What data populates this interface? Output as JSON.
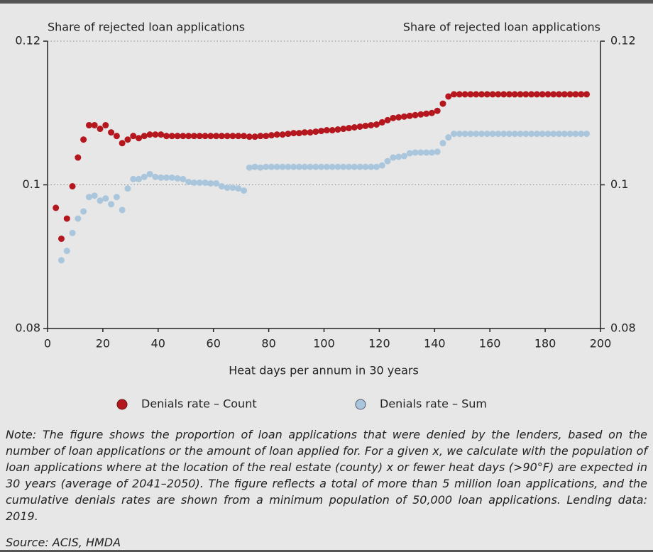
{
  "chart_data": {
    "type": "scatter",
    "y_label": "Share of rejected loan applications",
    "y2_label": "Share of rejected loan applications",
    "x_label": "Heat days per annum in 30 years",
    "x": [
      3,
      5,
      7,
      9,
      11,
      13,
      15,
      17,
      19,
      21,
      23,
      25,
      27,
      29,
      31,
      33,
      35,
      37,
      39,
      41,
      43,
      45,
      47,
      49,
      51,
      53,
      55,
      57,
      59,
      61,
      63,
      65,
      67,
      69,
      71,
      73,
      75,
      77,
      79,
      81,
      83,
      85,
      87,
      89,
      91,
      93,
      95,
      97,
      99,
      101,
      103,
      105,
      107,
      109,
      111,
      113,
      115,
      117,
      119,
      121,
      123,
      125,
      127,
      129,
      131,
      133,
      135,
      137,
      139,
      141,
      143,
      145,
      147,
      149,
      151,
      153,
      155,
      157,
      159,
      161,
      163,
      165,
      167,
      169,
      171,
      173,
      175,
      177,
      179,
      181,
      183,
      185,
      187,
      189,
      191,
      193,
      195
    ],
    "series": [
      {
        "name": "Denials rate – Count",
        "color": "#b5171e",
        "values": [
          0.0968,
          0.0925,
          0.0953,
          0.0998,
          0.1038,
          0.1063,
          0.1083,
          0.1083,
          0.1078,
          0.1083,
          0.1073,
          0.1068,
          0.1058,
          0.1063,
          0.1068,
          0.1065,
          0.1068,
          0.107,
          0.107,
          0.107,
          0.1068,
          0.1068,
          0.1068,
          0.1068,
          0.1068,
          0.1068,
          0.1068,
          0.1068,
          0.1068,
          0.1068,
          0.1068,
          0.1068,
          0.1068,
          0.1068,
          0.1068,
          0.1067,
          0.1067,
          0.1068,
          0.1068,
          0.1069,
          0.107,
          0.107,
          0.1071,
          0.1072,
          0.1072,
          0.1073,
          0.1073,
          0.1074,
          0.1075,
          0.1076,
          0.1076,
          0.1077,
          0.1078,
          0.1079,
          0.108,
          0.1081,
          0.1082,
          0.1083,
          0.1084,
          0.1087,
          0.109,
          0.1093,
          0.1094,
          0.1095,
          0.1096,
          0.1097,
          0.1098,
          0.1099,
          0.11,
          0.1103,
          0.1113,
          0.1123,
          0.1126,
          0.1126,
          0.1126,
          0.1126,
          0.1126,
          0.1126,
          0.1126,
          0.1126,
          0.1126,
          0.1126,
          0.1126,
          0.1126,
          0.1126,
          0.1126,
          0.1126,
          0.1126,
          0.1126,
          0.1126,
          0.1126,
          0.1126,
          0.1126,
          0.1126,
          0.1126,
          0.1126,
          0.1126
        ]
      },
      {
        "name": "Denials rate – Sum",
        "color": "#a9c6dd",
        "values": [
          null,
          0.0895,
          0.0908,
          0.0933,
          0.0953,
          0.0963,
          0.0983,
          0.0985,
          0.0978,
          0.0981,
          0.0973,
          0.0983,
          0.0965,
          0.0995,
          0.1008,
          0.1008,
          0.1011,
          0.1015,
          0.1011,
          0.101,
          0.101,
          0.101,
          0.1009,
          0.1008,
          0.1004,
          0.1003,
          0.1003,
          0.1003,
          0.1002,
          0.1002,
          0.0998,
          0.0996,
          0.0996,
          0.0995,
          0.0992,
          0.1024,
          0.1025,
          0.1024,
          0.1025,
          0.1025,
          0.1025,
          0.1025,
          0.1025,
          0.1025,
          0.1025,
          0.1025,
          0.1025,
          0.1025,
          0.1025,
          0.1025,
          0.1025,
          0.1025,
          0.1025,
          0.1025,
          0.1025,
          0.1025,
          0.1025,
          0.1025,
          0.1025,
          0.1027,
          0.1033,
          0.1038,
          0.1039,
          0.104,
          0.1044,
          0.1045,
          0.1045,
          0.1045,
          0.1045,
          0.1046,
          0.1058,
          0.1066,
          0.1071,
          0.1071,
          0.1071,
          0.1071,
          0.1071,
          0.1071,
          0.1071,
          0.1071,
          0.1071,
          0.1071,
          0.1071,
          0.1071,
          0.1071,
          0.1071,
          0.1071,
          0.1071,
          0.1071,
          0.1071,
          0.1071,
          0.1071,
          0.1071,
          0.1071,
          0.1071,
          0.1071,
          0.1071
        ]
      }
    ],
    "xlim": [
      0,
      200
    ],
    "xticks": [
      0,
      20,
      40,
      60,
      80,
      100,
      120,
      140,
      160,
      180,
      200
    ],
    "ylim": [
      0.08,
      0.12
    ],
    "yticks": [
      0.08,
      0.1,
      0.12
    ],
    "y2lim": [
      0.08,
      0.12
    ],
    "y2ticks": [
      0.08,
      0.1,
      0.12
    ],
    "grid": true,
    "legend": "bottom",
    "note": "Note: The figure shows the proportion of loan applications that were denied by the lenders, based on the number of loan applications or the amount of loan applied for. For a given x, we calculate with the population of loan applications where at the location of the real estate (county) x or fewer heat days (>90°F) are expected in 30 years (average of 2041–2050). The figure reflects a total of more than 5 million loan applications, and the cumulative denials rates are shown from a minimum population of 50,000 loan applications. Lending data: 2019.",
    "source": "Source: ACIS, HMDA"
  }
}
